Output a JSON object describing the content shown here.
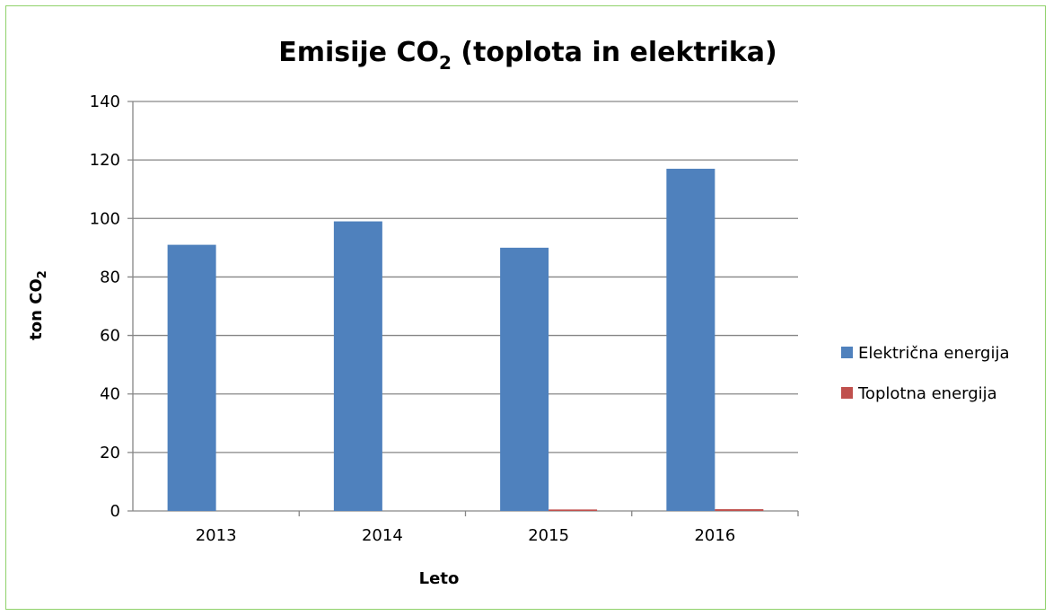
{
  "chart_data": {
    "type": "bar",
    "title": "Emisije CO",
    "title_subscript": "2",
    "title_suffix": " (toplota in elektrika)",
    "xlabel": "Leto",
    "ylabel": "ton CO",
    "ylabel_subscript": "2",
    "categories": [
      "2013",
      "2014",
      "2015",
      "2016"
    ],
    "series": [
      {
        "name": "Električna energija",
        "color": "#4f81bd",
        "values": [
          91,
          99,
          90,
          117
        ]
      },
      {
        "name": "Toplotna energija",
        "color": "#c0504d",
        "values": [
          0,
          0,
          0.5,
          0.6
        ]
      }
    ],
    "ylim": [
      0,
      140
    ],
    "yticks": [
      "0",
      "20",
      "40",
      "60",
      "80",
      "100",
      "120",
      "140"
    ],
    "grid": true,
    "legend_position": "right"
  },
  "frame_color": "#8fd16a",
  "grid_color": "#868686"
}
